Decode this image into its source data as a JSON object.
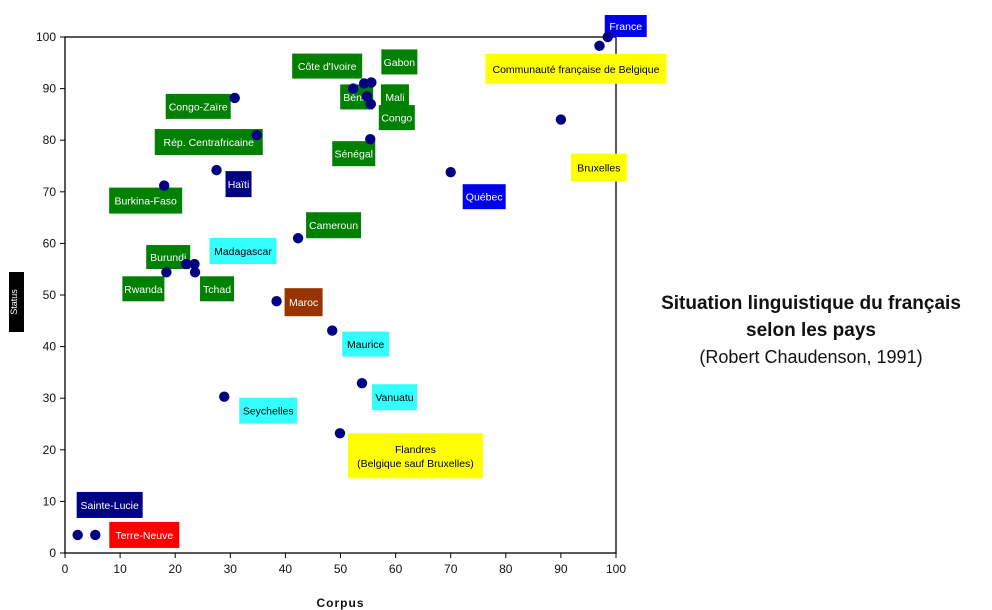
{
  "caption": {
    "line1": "Situation linguistique du français",
    "line2": "selon les pays",
    "line3": "(Robert Chaudenson, 1991)"
  },
  "chart_data": {
    "type": "scatter",
    "xlabel": "Corpus",
    "ylabel": "Status",
    "xlim": [
      0,
      100
    ],
    "ylim": [
      0,
      100
    ],
    "xticks": [
      0,
      10,
      20,
      30,
      40,
      50,
      60,
      70,
      80,
      90,
      100
    ],
    "yticks": [
      0,
      10,
      20,
      30,
      40,
      50,
      60,
      70,
      80,
      90,
      100
    ],
    "grid": false,
    "point_color": "#000080",
    "points": [
      {
        "x": 98.5,
        "y": 100,
        "label": "France",
        "color": "#0000ee"
      },
      {
        "x": 97,
        "y": 98.3,
        "label": "Communauté française de Belgique",
        "color": "#ffff00"
      },
      {
        "x": 90,
        "y": 84,
        "label": "Bruxelles",
        "color": "#ffff00"
      },
      {
        "x": 70,
        "y": 73.8,
        "label": "Québec",
        "color": "#0000ee"
      },
      {
        "x": 52.3,
        "y": 90,
        "label": "Côte d'Ivoire",
        "color": "#008000"
      },
      {
        "x": 55.6,
        "y": 91.2,
        "label": "Gabon",
        "color": "#008000"
      },
      {
        "x": 54.3,
        "y": 91,
        "label": "Bénin",
        "color": "#008000"
      },
      {
        "x": 54.8,
        "y": 88.5,
        "label": "Mali",
        "color": "#008000"
      },
      {
        "x": 55.5,
        "y": 87,
        "label": "Congo",
        "color": "#008000"
      },
      {
        "x": 55.4,
        "y": 80.2,
        "label": "Sénégal",
        "color": "#008000"
      },
      {
        "x": 30.8,
        "y": 88.2,
        "label": "Congo-Zaïre",
        "color": "#008000"
      },
      {
        "x": 34.8,
        "y": 81,
        "label": "Rép. Centrafricaine",
        "color": "#008000"
      },
      {
        "x": 27.5,
        "y": 74.2,
        "label": "Haïti",
        "color": "#000080"
      },
      {
        "x": 18,
        "y": 71.2,
        "label": "Burkina-Faso",
        "color": "#008000"
      },
      {
        "x": 42.3,
        "y": 61,
        "label": "Cameroun",
        "color": "#008000"
      },
      {
        "x": 22,
        "y": 56,
        "label": "Burundi",
        "color": "#008000"
      },
      {
        "x": 23.5,
        "y": 56,
        "label": "Madagascar",
        "color": "#33ffff"
      },
      {
        "x": 18.4,
        "y": 54.4,
        "label": "Rwanda",
        "color": "#008000"
      },
      {
        "x": 23.6,
        "y": 54.4,
        "label": "Tchad",
        "color": "#008000"
      },
      {
        "x": 38.4,
        "y": 48.8,
        "label": "Maroc",
        "color": "#993300"
      },
      {
        "x": 48.5,
        "y": 43.1,
        "label": "Maurice",
        "color": "#33ffff"
      },
      {
        "x": 53.9,
        "y": 32.9,
        "label": "Vanuatu",
        "color": "#33ffff"
      },
      {
        "x": 28.9,
        "y": 30.3,
        "label": "Seychelles",
        "color": "#33ffff"
      },
      {
        "x": 49.9,
        "y": 23.2,
        "label": "Flandres (Belgique sauf Bruxelles)",
        "label_lines": [
          "Flandres",
          "(Belgique sauf Bruxelles)"
        ],
        "color": "#ffff00"
      },
      {
        "x": 2.3,
        "y": 3.5,
        "label": "Sainte-Lucie",
        "color": "#000080"
      },
      {
        "x": 5.5,
        "y": 3.5,
        "label": "Terre-Neuve",
        "color": "#ff0000"
      }
    ]
  }
}
